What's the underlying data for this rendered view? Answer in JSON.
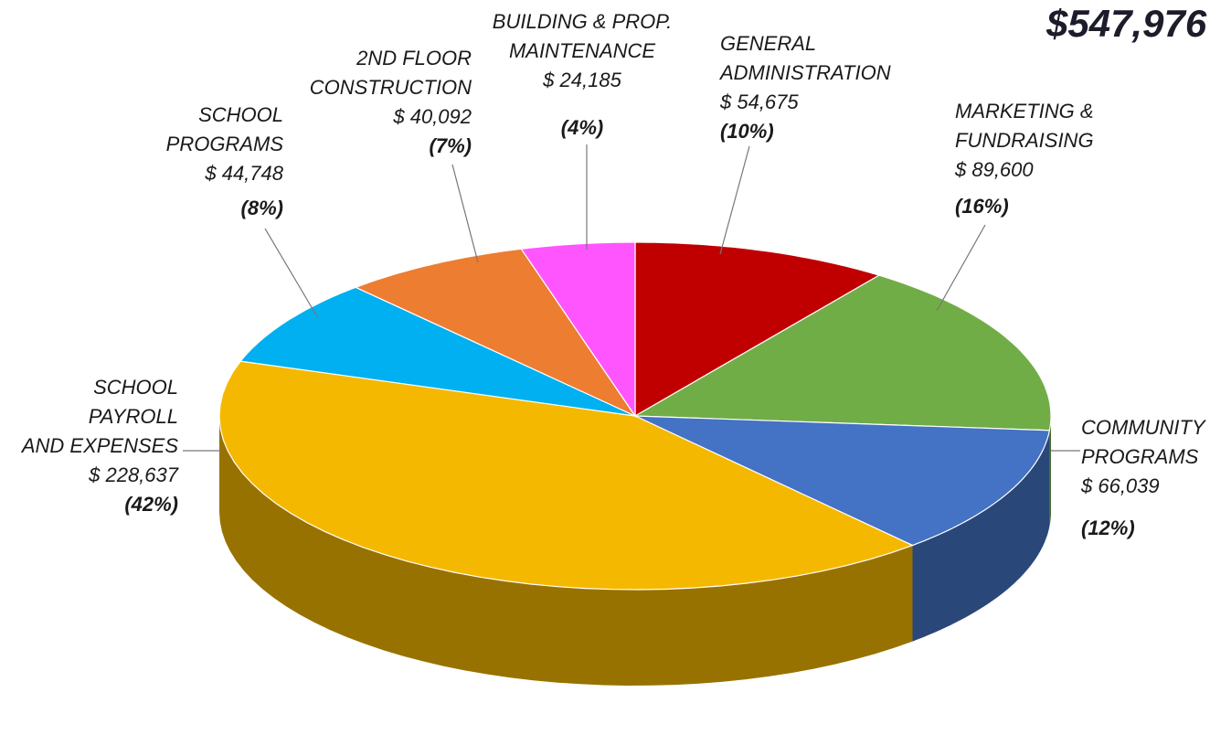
{
  "chart_data": {
    "type": "pie3d",
    "total_label": "$547,976",
    "categories": [
      "GENERAL\nADMINISTRATION",
      "MARKETING &\nFUNDRAISING",
      "COMMUNITY\nPROGRAMS",
      "SCHOOL PAYROLL\nAND EXPENSES",
      "SCHOOL\nPROGRAMS",
      "2ND FLOOR\nCONSTRUCTION",
      "BUILDING & PROP.\nMAINTENANCE"
    ],
    "values": [
      54675,
      89600,
      66039,
      228637,
      44748,
      40092,
      24185
    ],
    "value_labels": [
      "$ 54,675",
      "$ 89,600",
      "$ 66,039",
      "$ 228,637",
      "$ 44,748",
      "$ 40,092",
      "$ 24,185"
    ],
    "percent_labels": [
      "(10%)",
      "(16%)",
      "(12%)",
      "(42%)",
      "(8%)",
      "(7%)",
      "(4%)"
    ],
    "colors": [
      "#c00000",
      "#70ad47",
      "#4472c4",
      "#f5b800",
      "#00b0f0",
      "#ed7d31",
      "#ff55ff"
    ]
  }
}
